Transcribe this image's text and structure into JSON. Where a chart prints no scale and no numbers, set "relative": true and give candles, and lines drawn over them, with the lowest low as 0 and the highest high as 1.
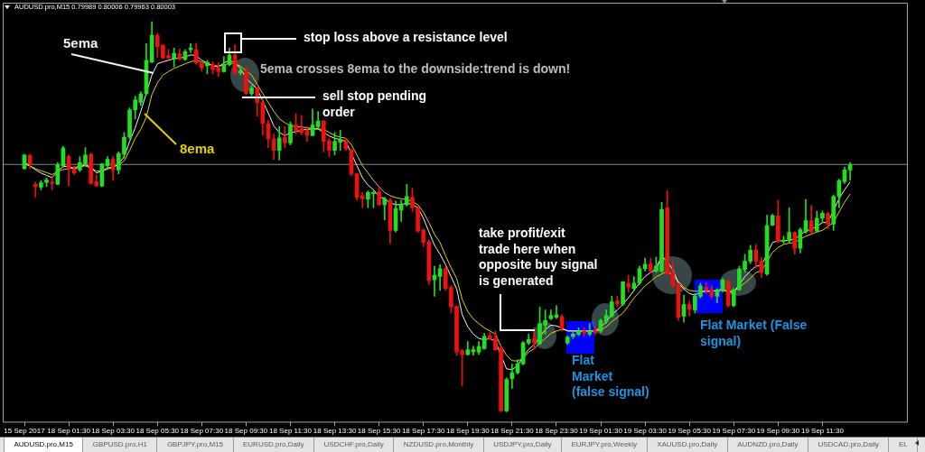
{
  "chart_data": {
    "type": "candlestick",
    "title": "AUDUSD.pro,M15 0.79989 0.80006 0.79963 0.80003",
    "relative": true,
    "tick_labels": "x",
    "categories": [
      "15 Sep 2017",
      null,
      null,
      null,
      null,
      null,
      null,
      null,
      "18 Sep 01:30",
      null,
      null,
      null,
      null,
      null,
      null,
      null,
      "18 Sep 03:30",
      null,
      null,
      null,
      null,
      null,
      null,
      null,
      "18 Sep 05:30",
      null,
      null,
      null,
      null,
      null,
      null,
      null,
      "18 Sep 07:30",
      null,
      null,
      null,
      null,
      null,
      null,
      null,
      "18 Sep 09:30",
      null,
      null,
      null,
      null,
      null,
      null,
      null,
      "18 Sep 11:30",
      null,
      null,
      null,
      null,
      null,
      null,
      null,
      "18 Sep 13:30",
      null,
      null,
      null,
      null,
      null,
      null,
      null,
      "18 Sep 15:30",
      null,
      null,
      null,
      null,
      null,
      null,
      null,
      "18 Sep 17:30",
      null,
      null,
      null,
      null,
      null,
      null,
      null,
      "18 Sep 19:30",
      null,
      null,
      null,
      null,
      null,
      null,
      null,
      "18 Sep 21:30",
      null,
      null,
      null,
      null,
      null,
      null,
      null,
      "18 Sep 23:30",
      null,
      null,
      null,
      null,
      null,
      null,
      null,
      "19 Sep 01:30",
      null,
      null,
      null,
      null,
      null,
      null,
      null,
      "19 Sep 03:30",
      null,
      null,
      null,
      null,
      null,
      null,
      null,
      "19 Sep 05:30",
      null,
      null,
      null,
      null,
      null,
      null,
      null,
      "19 Sep 07:30",
      null,
      null,
      null,
      null,
      null,
      null,
      null,
      "19 Sep 09:30",
      null,
      null,
      null,
      null,
      null,
      null,
      null,
      "19 Sep 11:30",
      null,
      null,
      null,
      null,
      null
    ],
    "ohlc": [
      [
        0.623,
        0.66,
        0.622,
        0.658
      ],
      [
        0.657,
        0.66,
        0.623,
        0.635
      ],
      [
        0.583,
        0.589,
        0.55,
        0.577
      ],
      [
        0.576,
        0.593,
        0.569,
        0.587
      ],
      [
        0.588,
        0.599,
        0.577,
        0.594
      ],
      [
        0.589,
        0.604,
        0.569,
        0.585
      ],
      [
        0.583,
        0.639,
        0.583,
        0.633
      ],
      [
        0.631,
        0.68,
        0.627,
        0.676
      ],
      [
        0.654,
        0.658,
        0.579,
        0.623
      ],
      [
        0.623,
        0.629,
        0.608,
        0.612
      ],
      [
        0.62,
        0.654,
        0.616,
        0.639
      ],
      [
        0.635,
        0.677,
        0.631,
        0.658
      ],
      [
        0.66,
        0.664,
        0.583,
        0.586
      ],
      [
        0.59,
        0.608,
        0.579,
        0.579
      ],
      [
        0.579,
        0.637,
        0.577,
        0.635
      ],
      [
        0.631,
        0.654,
        0.623,
        0.647
      ],
      [
        0.647,
        0.654,
        0.593,
        0.62
      ],
      [
        0.62,
        0.666,
        0.61,
        0.662
      ],
      [
        0.66,
        0.716,
        0.65,
        0.704
      ],
      [
        0.704,
        0.779,
        0.699,
        0.774
      ],
      [
        0.774,
        0.809,
        0.751,
        0.799
      ],
      [
        0.793,
        0.82,
        0.785,
        0.815
      ],
      [
        0.815,
        0.944,
        0.813,
        0.901
      ],
      [
        0.897,
        1,
        0.895,
        0.965
      ],
      [
        0.965,
        0.969,
        0.909,
        0.936
      ],
      [
        0.94,
        0.941,
        0.905,
        0.907
      ],
      [
        0.913,
        0.928,
        0.904,
        0.907
      ],
      [
        0.905,
        0.932,
        0.884,
        0.919
      ],
      [
        0.918,
        0.93,
        0.901,
        0.904
      ],
      [
        0.903,
        0.928,
        0.901,
        0.923
      ],
      [
        0.928,
        0.944,
        0.921,
        0.932
      ],
      [
        0.928,
        0.945,
        0.891,
        0.894
      ],
      [
        0.894,
        0.897,
        0.873,
        0.882
      ],
      [
        0.887,
        0.901,
        0.866,
        0.896
      ],
      [
        0.89,
        0.897,
        0.866,
        0.877
      ],
      [
        0.882,
        0.894,
        0.859,
        0.872
      ],
      [
        0.872,
        0.91,
        0.87,
        0.89
      ],
      [
        0.89,
        0.932,
        0.887,
        0.914
      ],
      [
        0.914,
        0.941,
        0.866,
        0.868
      ],
      [
        0.869,
        0.882,
        0.863,
        0.874
      ],
      [
        0.874,
        0.882,
        0.813,
        0.816
      ],
      [
        0.815,
        0.836,
        0.81,
        0.83
      ],
      [
        0.83,
        0.833,
        0.758,
        0.793
      ],
      [
        0.793,
        0.801,
        0.708,
        0.739
      ],
      [
        0.739,
        0.747,
        0.677,
        0.699
      ],
      [
        0.699,
        0.712,
        0.647,
        0.67
      ],
      [
        0.67,
        0.731,
        0.645,
        0.702
      ],
      [
        0.704,
        0.731,
        0.677,
        0.689
      ],
      [
        0.689,
        0.743,
        0.684,
        0.737
      ],
      [
        0.735,
        0.764,
        0.712,
        0.72
      ],
      [
        0.725,
        0.76,
        0.71,
        0.716
      ],
      [
        0.722,
        0.731,
        0.693,
        0.708
      ],
      [
        0.708,
        0.776,
        0.707,
        0.735
      ],
      [
        0.731,
        0.77,
        0.725,
        0.745
      ],
      [
        0.745,
        0.747,
        0.666,
        0.693
      ],
      [
        0.695,
        0.702,
        0.654,
        0.67
      ],
      [
        0.67,
        0.716,
        0.658,
        0.693
      ],
      [
        0.691,
        0.722,
        0.67,
        0.697
      ],
      [
        0.693,
        0.701,
        0.67,
        0.674
      ],
      [
        0.671,
        0.674,
        0.606,
        0.61
      ],
      [
        0.61,
        0.612,
        0.542,
        0.55
      ],
      [
        0.554,
        0.562,
        0.523,
        0.546
      ],
      [
        0.545,
        0.566,
        0.523,
        0.562
      ],
      [
        0.559,
        0.566,
        0.523,
        0.562
      ],
      [
        0.564,
        0.577,
        0.529,
        0.531
      ],
      [
        0.531,
        0.55,
        0.492,
        0.546
      ],
      [
        0.542,
        0.546,
        0.431,
        0.465
      ],
      [
        0.465,
        0.54,
        0.461,
        0.521
      ],
      [
        0.517,
        0.542,
        0.488,
        0.531
      ],
      [
        0.531,
        0.583,
        0.527,
        0.552
      ],
      [
        0.55,
        0.573,
        0.512,
        0.523
      ],
      [
        0.523,
        0.527,
        0.46,
        0.463
      ],
      [
        0.465,
        0.469,
        0.423,
        0.434
      ],
      [
        0.436,
        0.44,
        0.326,
        0.336
      ],
      [
        0.338,
        0.373,
        0.296,
        0.35
      ],
      [
        0.347,
        0.377,
        0.311,
        0.367
      ],
      [
        0.367,
        0.37,
        0.311,
        0.316
      ],
      [
        0.319,
        0.323,
        0.253,
        0.269
      ],
      [
        0.27,
        0.272,
        0.144,
        0.154
      ],
      [
        0.157,
        0.16,
        0.066,
        0.147
      ],
      [
        0.147,
        0.18,
        0.145,
        0.159
      ],
      [
        0.154,
        0.168,
        0.145,
        0.159
      ],
      [
        0.153,
        0.18,
        0.147,
        0.167
      ],
      [
        0.162,
        0.201,
        0.16,
        0.193
      ],
      [
        0.195,
        0.203,
        0.184,
        0.188
      ],
      [
        0.188,
        0.207,
        0.157,
        0.159
      ],
      [
        0.164,
        0.168,
        0,
        0.002
      ],
      [
        0.002,
        0.087,
        0,
        0.083
      ],
      [
        0.085,
        0.122,
        0.06,
        0.1
      ],
      [
        0.1,
        0.133,
        0.097,
        0.123
      ],
      [
        0.123,
        0.18,
        0.12,
        0.177
      ],
      [
        0.176,
        0.199,
        0.172,
        0.185
      ],
      [
        0.188,
        0.215,
        0.16,
        0.176
      ],
      [
        0.174,
        0.269,
        0.172,
        0.226
      ],
      [
        0.222,
        0.261,
        0.199,
        0.234
      ],
      [
        0.239,
        0.261,
        0.236,
        0.247
      ],
      [
        0.242,
        0.272,
        0.239,
        0.249
      ],
      [
        0.244,
        0.249,
        0.207,
        0.215
      ],
      [
        0.176,
        0.195,
        0.172,
        0.191
      ],
      [
        0.193,
        0.203,
        0.188,
        0.199
      ],
      [
        0.198,
        0.215,
        0.195,
        0.207
      ],
      [
        0.207,
        0.215,
        0.193,
        0.201
      ],
      [
        0.199,
        0.226,
        0.195,
        0.207
      ],
      [
        0.208,
        0.218,
        0.198,
        0.203
      ],
      [
        0.207,
        0.238,
        0.203,
        0.234
      ],
      [
        0.231,
        0.261,
        0.226,
        0.247
      ],
      [
        0.245,
        0.296,
        0.242,
        0.282
      ],
      [
        0.284,
        0.296,
        0.269,
        0.276
      ],
      [
        0.276,
        0.334,
        0.272,
        0.333
      ],
      [
        0.33,
        0.35,
        0.307,
        0.319
      ],
      [
        0.316,
        0.346,
        0.311,
        0.33
      ],
      [
        0.33,
        0.373,
        0.326,
        0.367
      ],
      [
        0.367,
        0.394,
        0.361,
        0.378
      ],
      [
        0.379,
        0.394,
        0.357,
        0.361
      ],
      [
        0.36,
        0.396,
        0.357,
        0.373
      ],
      [
        0.361,
        0.537,
        0.357,
        0.519
      ],
      [
        0.523,
        0.566,
        0.35,
        0.353
      ],
      [
        0.357,
        0.384,
        0.319,
        0.323
      ],
      [
        0.326,
        0.33,
        0.234,
        0.242
      ],
      [
        0.245,
        0.299,
        0.23,
        0.275
      ],
      [
        0.275,
        0.284,
        0.245,
        0.262
      ],
      [
        0.261,
        0.303,
        0.253,
        0.296
      ],
      [
        0.296,
        0.33,
        0.292,
        0.323
      ],
      [
        0.319,
        0.332,
        0.303,
        0.311
      ],
      [
        0.313,
        0.323,
        0.292,
        0.296
      ],
      [
        0.296,
        0.316,
        0.28,
        0.313
      ],
      [
        0.311,
        0.342,
        0.307,
        0.338
      ],
      [
        0.334,
        0.34,
        0.269,
        0.272
      ],
      [
        0.272,
        0.316,
        0.269,
        0.313
      ],
      [
        0.313,
        0.373,
        0.311,
        0.367
      ],
      [
        0.365,
        0.404,
        0.357,
        0.386
      ],
      [
        0.386,
        0.427,
        0.38,
        0.414
      ],
      [
        0.414,
        0.429,
        0.369,
        0.386
      ],
      [
        0.386,
        0.396,
        0.344,
        0.357
      ],
      [
        0.353,
        0.504,
        0.35,
        0.478
      ],
      [
        0.478,
        0.506,
        0.477,
        0.503
      ],
      [
        0.502,
        0.542,
        0.434,
        0.437
      ],
      [
        0.437,
        0.45,
        0.431,
        0.44
      ],
      [
        0.438,
        0.523,
        0.434,
        0.46
      ],
      [
        0.46,
        0.461,
        0.404,
        0.419
      ],
      [
        0.419,
        0.471,
        0.407,
        0.467
      ],
      [
        0.461,
        0.544,
        0.458,
        0.49
      ],
      [
        0.49,
        0.529,
        0.458,
        0.461
      ],
      [
        0.463,
        0.515,
        0.46,
        0.496
      ],
      [
        0.496,
        0.515,
        0.485,
        0.509
      ],
      [
        0.508,
        0.512,
        0.469,
        0.481
      ],
      [
        0.481,
        0.556,
        0.465,
        0.552
      ],
      [
        0.552,
        0.596,
        0.523,
        0.593
      ],
      [
        0.59,
        0.627,
        0.585,
        0.62
      ],
      [
        0.62,
        0.639,
        0.594,
        0.634
      ]
    ],
    "colors": [
      "#20e020",
      "#f01010",
      "#f01010",
      "#20e020",
      "#20e020",
      "#f01010",
      "#20e020",
      "#20e020",
      "#f01010",
      "#f01010",
      "#20e020",
      "#20e020",
      "#f01010",
      "#f01010",
      "#20e020",
      "#20e020",
      "#f01010",
      "#20e020",
      "#20e020",
      "#20e020",
      "#20e020",
      "#20e020",
      "#20e020",
      "#20e020",
      "#f01010",
      "#f01010",
      "#f01010",
      "#20e020",
      "#f01010",
      "#20e020",
      "#20e020",
      "#f01010",
      "#f01010",
      "#20e020",
      "#f01010",
      "#f01010",
      "#20e020",
      "#20e020",
      "#f01010",
      "#20e020",
      "#f01010",
      "#20e020",
      "#f01010",
      "#f01010",
      "#f01010",
      "#f01010",
      "#20e020",
      "#f01010",
      "#20e020",
      "#f01010",
      "#f01010",
      "#f01010",
      "#20e020",
      "#20e020",
      "#f01010",
      "#f01010",
      "#20e020",
      "#20e020",
      "#f01010",
      "#f01010",
      "#f01010",
      "#f01010",
      "#20e020",
      "#20e020",
      "#f01010",
      "#20e020",
      "#f01010",
      "#20e020",
      "#20e020",
      "#20e020",
      "#f01010",
      "#f01010",
      "#f01010",
      "#f01010",
      "#20e020",
      "#20e020",
      "#f01010",
      "#f01010",
      "#f01010",
      "#f01010",
      "#20e020",
      "#20e020",
      "#20e020",
      "#20e020",
      "#f01010",
      "#f01010",
      "#f01010",
      "#20e020",
      "#20e020",
      "#20e020",
      "#20e020",
      "#20e020",
      "#f01010",
      "#20e020",
      "#20e020",
      "#20e020",
      "#20e020",
      "#f01010",
      "#20e020",
      "#20e020",
      "#20e020",
      "#f01010",
      "#20e020",
      "#f01010",
      "#20e020",
      "#20e020",
      "#20e020",
      "#f01010",
      "#20e020",
      "#f01010",
      "#20e020",
      "#20e020",
      "#20e020",
      "#f01010",
      "#20e020",
      "#20e020",
      "#f01010",
      "#f01010",
      "#f01010",
      "#20e020",
      "#f01010",
      "#20e020",
      "#20e020",
      "#f01010",
      "#f01010",
      "#20e020",
      "#20e020",
      "#f01010",
      "#20e020",
      "#20e020",
      "#20e020",
      "#20e020",
      "#f01010",
      "#f01010",
      "#20e020",
      "#20e020",
      "#f01010",
      "#20e020",
      "#20e020",
      "#f01010",
      "#20e020",
      "#20e020",
      "#f01010",
      "#20e020",
      "#20e020",
      "#f01010",
      "#20e020",
      "#20e020",
      "#20e020",
      "#20e020"
    ],
    "series": [
      {
        "type": "line",
        "name": "5ema",
        "color": "#f0f0f0",
        "values": [
          0.639,
          0.631,
          0.62,
          0.612,
          0.606,
          0.6,
          0.616,
          0.629,
          0.629,
          0.623,
          0.627,
          0.633,
          0.627,
          0.612,
          0.617,
          0.625,
          0.627,
          0.635,
          0.654,
          0.693,
          0.728,
          0.77,
          null,
          0.863,
          0.892,
          0.897,
          0.901,
          0.905,
          0.907,
          0.909,
          0.915,
          0.913,
          0.901,
          0.894,
          0.887,
          0.884,
          0.894,
          0.901,
          0.894,
          0.88,
          0.855,
          0.841,
          0.828,
          0.797,
          0.766,
          0.733,
          0.716,
          0.708,
          0.715,
          0.718,
          0.722,
          0.724,
          0.725,
          0.725,
          0.716,
          0.707,
          0.701,
          0.698,
          0.693,
          null,
          0.631,
          0.6,
          0.581,
          0.569,
          0.552,
          0.546,
          0.535,
          0.531,
          0.531,
          0.535,
          0.531,
          0.523,
          0.496,
          0.461,
          0.427,
          0.404,
          0.377,
          0.346,
          0.315,
          0.249,
          0.218,
          0.199,
          0.188,
          0.184,
          0.188,
          0.18,
          null,
          0.11,
          0.108,
          0.118,
          0.141,
          0.16,
          0.172,
          0.191,
          0.211,
          0.222,
          0.22,
          0.215,
          0.207,
          0.207,
          0.207,
          0.207,
          0.207,
          0.207,
          0.216,
          0.231,
          0.249,
          0.261,
          0.276,
          0.292,
          0.311,
          0.33,
          0.347,
          0.357,
          0.365,
          0.4,
          0.384,
          0.365,
          0.33,
          0.315,
          0.303,
          0.299,
          0.307,
          0.309,
          0.309,
          0.311,
          0.315,
          0.307,
          0.306,
          0.326,
          0.346,
          0.361,
          0.373,
          0.375,
          null,
          0.434,
          0.438,
          0.438,
          0.44,
          0.442,
          0.454,
          0.463,
          0.468,
          0.475,
          0.485,
          0.485,
          null,
          0.546,
          0.569,
          0.589
        ]
      },
      {
        "type": "line",
        "name": "8ema",
        "color": "#e6d000",
        "values": [
          0.635,
          0.63,
          0.623,
          0.618,
          0.613,
          0.608,
          0.616,
          0.621,
          0.623,
          0.626,
          0.63,
          0.63,
          0.625,
          0.617,
          0.617,
          0.622,
          0.627,
          0.633,
          0.643,
          0.67,
          0.701,
          0.724,
          0.755,
          0.813,
          0.843,
          0.863,
          0.872,
          0.88,
          0.886,
          0.892,
          0.897,
          0.901,
          0.897,
          0.891,
          0.888,
          0.886,
          0.889,
          0.894,
          0.892,
          0.886,
          0.874,
          0.863,
          0.84,
          0.816,
          0.793,
          0.77,
          0.751,
          0.741,
          0.733,
          0.731,
          0.73,
          0.728,
          0.726,
          0.725,
          0.724,
          0.716,
          0.708,
          0.704,
          0.701,
          0.685,
          0.658,
          0.631,
          0.612,
          0.593,
          0.577,
          0.562,
          0.554,
          0.549,
          0.546,
          0.544,
          0.539,
          0.531,
          0.512,
          0.485,
          0.455,
          0.434,
          0.4,
          0.369,
          0.342,
          0.288,
          0.257,
          0.238,
          0.226,
          0.215,
          0.207,
          0.199,
          0.168,
          0.145,
          0.131,
          0.13,
          0.137,
          0.153,
          0.162,
          0.176,
          0.188,
          0.201,
          0.207,
          0.211,
          0.208,
          0.207,
          0.207,
          0.207,
          0.207,
          0.207,
          0.209,
          0.218,
          0.231,
          0.242,
          0.253,
          0.272,
          0.292,
          0.307,
          0.323,
          0.334,
          0.346,
          0.353,
          0.36,
          0.35,
          0.334,
          0.319,
          0.311,
          0.309,
          0.309,
          0.309,
          0.309,
          null,
          0.311,
          0.309,
          0.309,
          0.319,
          0.33,
          0.342,
          0.357,
          0.361,
          null,
          0.409,
          0.421,
          0.429,
          0.432,
          0.434,
          0.442,
          0.45,
          0.455,
          0.461,
          0.465,
          0.475,
          0.485,
          0.512,
          0.537,
          0.558
        ]
      }
    ],
    "ref_lines": [
      {
        "axis": "y",
        "value": 0.634,
        "color": "#7c8a98"
      }
    ],
    "annotations": [
      "stop loss above a resistance level",
      "5ema crosses 8ema to the downside:trend is down!",
      "sell stop pending order",
      "take profit/exit trade here when opposite buy signal is generated",
      "Flat Market (false signal)",
      "Flat Market (False signal)",
      "AUDUSD.pro,M15",
      "GBPUSD.pro,H1",
      "GBPJPY.pro,M15",
      "EURUSD.pro,Daily",
      "USDCHF.pro,Daily",
      "NZDUSD.pro,Monthly",
      "USDJPY.pro,Daily",
      "EURJPY.pro,Weekly",
      "XAUUSD.pro,Daily",
      "AUDNZD.pro,Daily",
      "USDCAD.pro,Daily",
      "EL"
    ]
  }
}
